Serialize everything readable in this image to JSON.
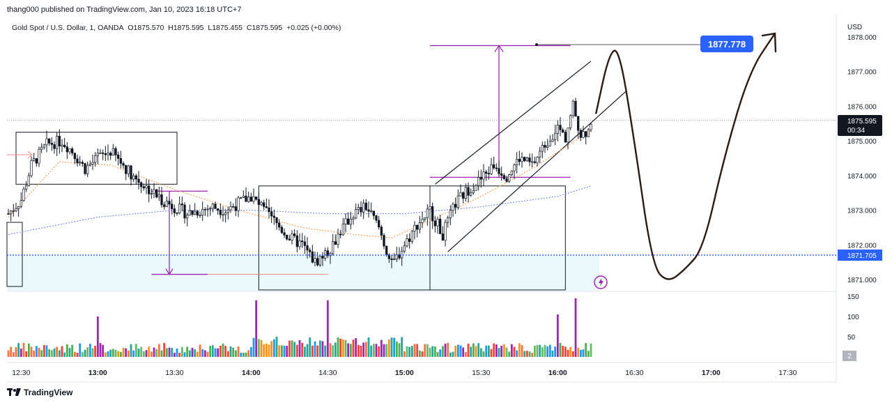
{
  "header": {
    "published": "thang000 published on TradingView.com, Jan 10, 2023 16:18 UTC+7"
  },
  "symbol": {
    "name": "Gold Spot / U.S. Dollar, 1, OANDA",
    "open": "O1875.570",
    "high": "H1875.595",
    "low": "L1875.455",
    "close": "C1875.595",
    "change": "+0.025 (+0.00%)"
  },
  "price_axis": {
    "currency": "USD",
    "labels": [
      "1878.000",
      "1877.000",
      "1876.000",
      "1875.000",
      "1874.000",
      "1873.000",
      "1872.000",
      "1871.000"
    ],
    "current_price": "1875.595",
    "countdown": "00:34",
    "level_label": "1871.705",
    "target_label": "1877.778"
  },
  "volume_axis": {
    "labels": [
      "150",
      "100",
      "50"
    ],
    "badge": "2"
  },
  "time_axis": {
    "labels": [
      {
        "text": "12:30",
        "bold": false
      },
      {
        "text": "13:00",
        "bold": true
      },
      {
        "text": "13:30",
        "bold": false
      },
      {
        "text": "14:00",
        "bold": true
      },
      {
        "text": "14:30",
        "bold": false
      },
      {
        "text": "15:00",
        "bold": true
      },
      {
        "text": "15:30",
        "bold": false
      },
      {
        "text": "16:00",
        "bold": true
      },
      {
        "text": "16:30",
        "bold": false
      },
      {
        "text": "17:00",
        "bold": true
      },
      {
        "text": "17:30",
        "bold": false
      }
    ]
  },
  "footer": {
    "brand": "TradingView"
  },
  "colors": {
    "up": "#26a69a",
    "down": "#131722",
    "accent": "#2962ff",
    "drawing": "#9c27b0"
  },
  "chart_data": {
    "type": "candlestick",
    "instrument": "Gold Spot / U.S. Dollar",
    "interval": "1",
    "y_unit": "USD",
    "ylim": [
      1870.7,
      1878.2
    ],
    "x_start": "12:25",
    "bars_per_minute": 1,
    "close_path": [
      {
        "t": "12:25",
        "p": 1872.9
      },
      {
        "t": "12:30",
        "p": 1873.3
      },
      {
        "t": "12:34",
        "p": 1874.3
      },
      {
        "t": "12:40",
        "p": 1874.9
      },
      {
        "t": "12:46",
        "p": 1875.0
      },
      {
        "t": "12:50",
        "p": 1874.7
      },
      {
        "t": "12:55",
        "p": 1874.2
      },
      {
        "t": "13:00",
        "p": 1874.5
      },
      {
        "t": "13:05",
        "p": 1874.7
      },
      {
        "t": "13:10",
        "p": 1874.3
      },
      {
        "t": "13:15",
        "p": 1873.9
      },
      {
        "t": "13:20",
        "p": 1873.6
      },
      {
        "t": "13:25",
        "p": 1873.3
      },
      {
        "t": "13:30",
        "p": 1873.1
      },
      {
        "t": "13:35",
        "p": 1872.9
      },
      {
        "t": "13:40",
        "p": 1873.0
      },
      {
        "t": "13:45",
        "p": 1873.1
      },
      {
        "t": "13:50",
        "p": 1873.0
      },
      {
        "t": "13:55",
        "p": 1873.2
      },
      {
        "t": "14:00",
        "p": 1873.4
      },
      {
        "t": "14:05",
        "p": 1873.0
      },
      {
        "t": "14:10",
        "p": 1872.6
      },
      {
        "t": "14:15",
        "p": 1872.2
      },
      {
        "t": "14:20",
        "p": 1872.0
      },
      {
        "t": "14:25",
        "p": 1871.5
      },
      {
        "t": "14:30",
        "p": 1871.8
      },
      {
        "t": "14:35",
        "p": 1872.4
      },
      {
        "t": "14:40",
        "p": 1872.9
      },
      {
        "t": "14:45",
        "p": 1873.1
      },
      {
        "t": "14:50",
        "p": 1872.5
      },
      {
        "t": "14:55",
        "p": 1871.4
      },
      {
        "t": "15:00",
        "p": 1872.0
      },
      {
        "t": "15:05",
        "p": 1872.6
      },
      {
        "t": "15:10",
        "p": 1873.0
      },
      {
        "t": "15:15",
        "p": 1872.3
      },
      {
        "t": "15:20",
        "p": 1873.2
      },
      {
        "t": "15:25",
        "p": 1873.6
      },
      {
        "t": "15:30",
        "p": 1873.9
      },
      {
        "t": "15:35",
        "p": 1874.3
      },
      {
        "t": "15:40",
        "p": 1874.0
      },
      {
        "t": "15:45",
        "p": 1874.5
      },
      {
        "t": "15:50",
        "p": 1874.3
      },
      {
        "t": "15:55",
        "p": 1874.9
      },
      {
        "t": "16:00",
        "p": 1875.4
      },
      {
        "t": "16:03",
        "p": 1875.1
      },
      {
        "t": "16:06",
        "p": 1876.0
      },
      {
        "t": "16:09",
        "p": 1875.2
      },
      {
        "t": "16:12",
        "p": 1875.3
      },
      {
        "t": "16:13",
        "p": 1875.595
      }
    ],
    "moving_averages": [
      {
        "style": "dotted-orange",
        "path": [
          {
            "t": "12:25",
            "p": 1872.8
          },
          {
            "t": "12:45",
            "p": 1874.4
          },
          {
            "t": "13:05",
            "p": 1874.3
          },
          {
            "t": "13:30",
            "p": 1873.6
          },
          {
            "t": "13:55",
            "p": 1873.0
          },
          {
            "t": "14:20",
            "p": 1872.5
          },
          {
            "t": "14:40",
            "p": 1872.3
          },
          {
            "t": "14:55",
            "p": 1872.2
          },
          {
            "t": "15:10",
            "p": 1872.7
          },
          {
            "t": "15:30",
            "p": 1873.4
          },
          {
            "t": "15:50",
            "p": 1874.2
          },
          {
            "t": "16:13",
            "p": 1875.3
          }
        ]
      },
      {
        "style": "dotted-blue",
        "path": [
          {
            "t": "12:25",
            "p": 1872.3
          },
          {
            "t": "13:00",
            "p": 1872.8
          },
          {
            "t": "13:30",
            "p": 1873.0
          },
          {
            "t": "14:00",
            "p": 1873.0
          },
          {
            "t": "14:30",
            "p": 1872.9
          },
          {
            "t": "15:00",
            "p": 1872.9
          },
          {
            "t": "15:30",
            "p": 1873.1
          },
          {
            "t": "16:00",
            "p": 1873.4
          },
          {
            "t": "16:13",
            "p": 1873.7
          }
        ]
      }
    ],
    "horizontal_levels": [
      {
        "name": "current",
        "price": 1875.595,
        "style": "dotted-grey"
      },
      {
        "name": "support",
        "price": 1871.705,
        "style": "dotted-blue"
      },
      {
        "name": "target",
        "price": 1877.778,
        "style": "solid-grey"
      }
    ],
    "projection_path": [
      {
        "t": "16:15",
        "p": 1875.8
      },
      {
        "t": "16:20",
        "p": 1877.5
      },
      {
        "t": "16:24",
        "p": 1877.7
      },
      {
        "t": "16:30",
        "p": 1875.0
      },
      {
        "t": "16:37",
        "p": 1871.4
      },
      {
        "t": "16:43",
        "p": 1870.9
      },
      {
        "t": "16:50",
        "p": 1871.3
      },
      {
        "t": "16:57",
        "p": 1871.9
      },
      {
        "t": "17:05",
        "p": 1874.5
      },
      {
        "t": "17:15",
        "p": 1877.0
      },
      {
        "t": "17:25",
        "p": 1878.1
      }
    ],
    "volume": {
      "ylim": [
        0,
        150
      ],
      "peaks": [
        {
          "t": "13:00",
          "v": 100
        },
        {
          "t": "14:02",
          "v": 140
        },
        {
          "t": "14:30",
          "v": 140
        },
        {
          "t": "16:00",
          "v": 105
        },
        {
          "t": "16:07",
          "v": 145
        }
      ]
    },
    "grid": false,
    "legend": "none"
  }
}
